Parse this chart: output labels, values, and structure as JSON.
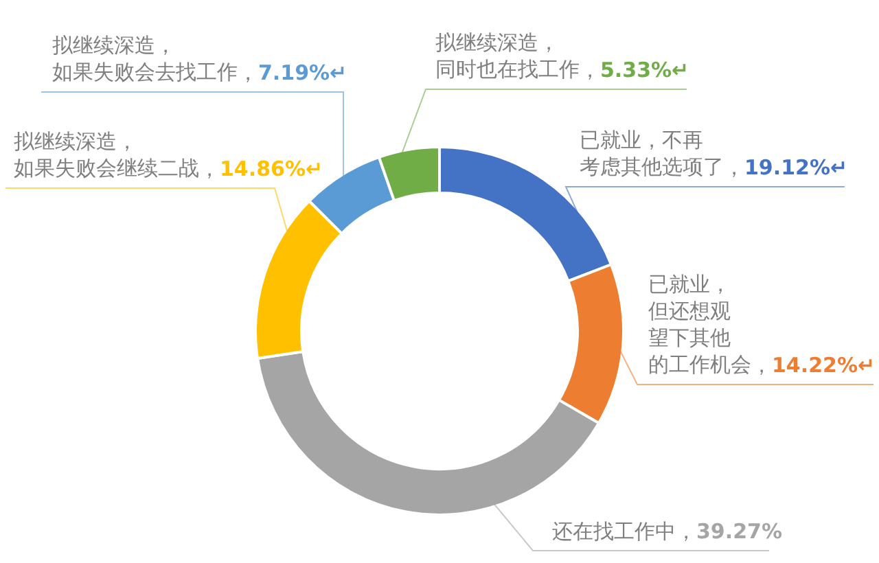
{
  "chart_data": {
    "type": "donut",
    "categories": [
      "已就业，不再考虑其他选项了",
      "已就业，但还想观望下其他的工作机会",
      "还在找工作中",
      "拟继续深造，如果失败会继续二战",
      "拟继续深造，如果失败会去找工作",
      "拟继续深造，同时也在找工作"
    ],
    "values": [
      19.12,
      14.22,
      39.27,
      14.86,
      7.19,
      5.33
    ],
    "colors": [
      "#4472c4",
      "#ed7d31",
      "#a5a5a5",
      "#ffc000",
      "#5b9bd5",
      "#70ad47"
    ],
    "value_labels": [
      "，19.12%↵",
      "，14.22%↵",
      "，39.27%",
      "，14.86%↵",
      "，7.19%↵",
      "，5.33%↵"
    ],
    "legend": false
  }
}
